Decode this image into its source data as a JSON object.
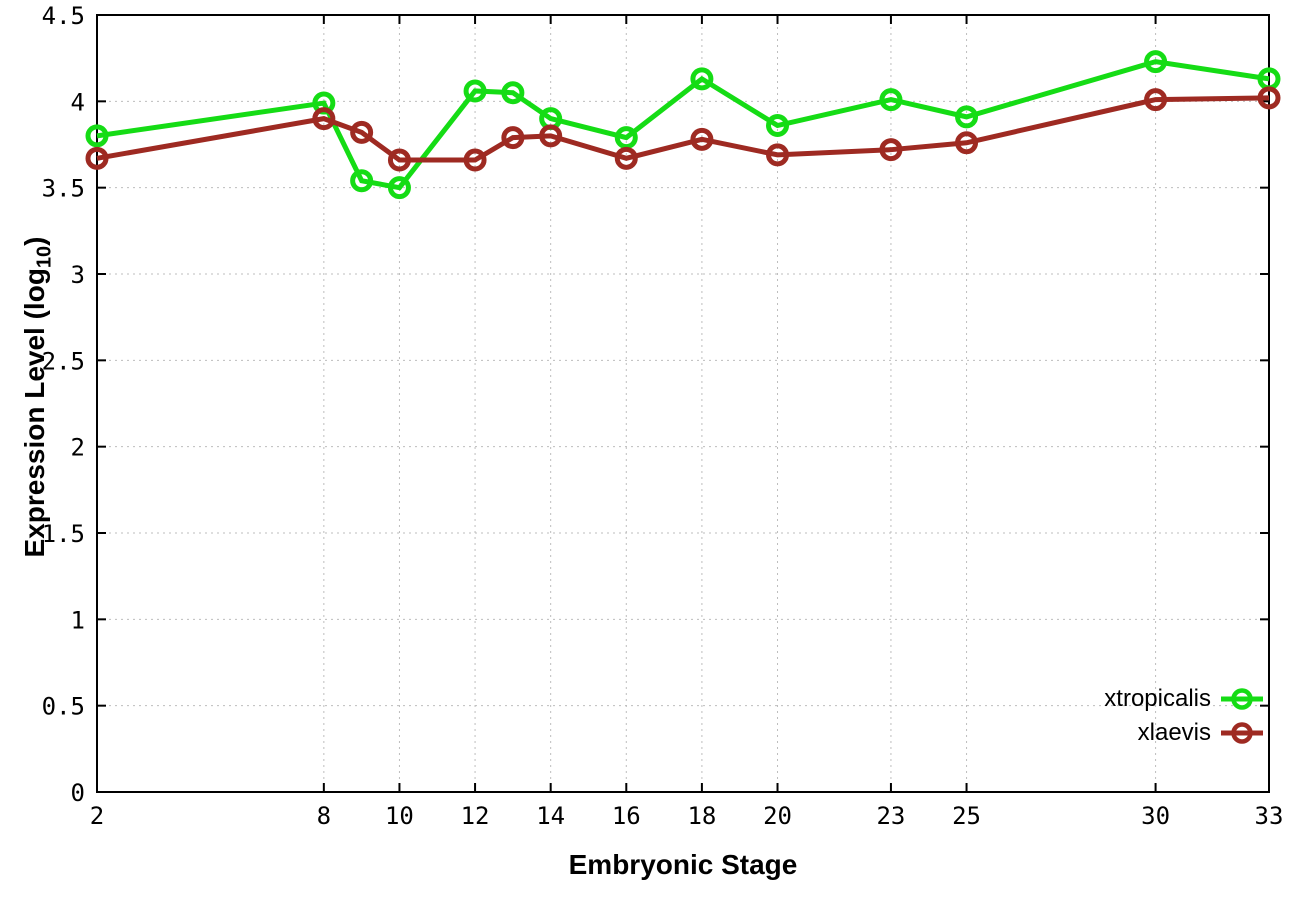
{
  "chart_data": {
    "type": "line",
    "title": "",
    "xlabel": "Embryonic Stage",
    "ylabel_prefix": "Expression Level (log",
    "ylabel_sub": "10",
    "ylabel_suffix": ")",
    "xlim": [
      2,
      33
    ],
    "ylim": [
      0,
      4.5
    ],
    "grid": true,
    "legend_position": "bottom-right",
    "x": [
      2,
      8,
      9,
      10,
      12,
      13,
      14,
      16,
      18,
      20,
      23,
      25,
      30,
      33
    ],
    "x_tick_values": [
      2,
      8,
      10,
      12,
      14,
      16,
      18,
      20,
      23,
      25,
      30,
      33
    ],
    "x_tick_labels": [
      "2",
      "8",
      "10",
      "12",
      "14",
      "16",
      "18",
      "20",
      "23",
      "25",
      "30",
      "33"
    ],
    "y_tick_values": [
      0,
      0.5,
      1,
      1.5,
      2,
      2.5,
      3,
      3.5,
      4,
      4.5
    ],
    "y_tick_labels": [
      "0",
      "0.5",
      "1",
      "1.5",
      "2",
      "2.5",
      "3",
      "3.5",
      "4",
      "4.5"
    ],
    "series": [
      {
        "name": "xtropicalis",
        "color": "#15dc15",
        "values": [
          3.8,
          3.99,
          3.54,
          3.5,
          4.06,
          4.05,
          3.9,
          3.79,
          4.13,
          3.86,
          4.01,
          3.91,
          4.23,
          4.13
        ]
      },
      {
        "name": "xlaevis",
        "color": "#9e2a22",
        "values": [
          3.67,
          3.9,
          3.82,
          3.66,
          3.66,
          3.79,
          3.8,
          3.67,
          3.78,
          3.69,
          3.72,
          3.76,
          4.01,
          4.02
        ]
      }
    ],
    "colors": {
      "grid": "#bdbdbd",
      "axis": "#000000",
      "background": "#ffffff"
    }
  }
}
